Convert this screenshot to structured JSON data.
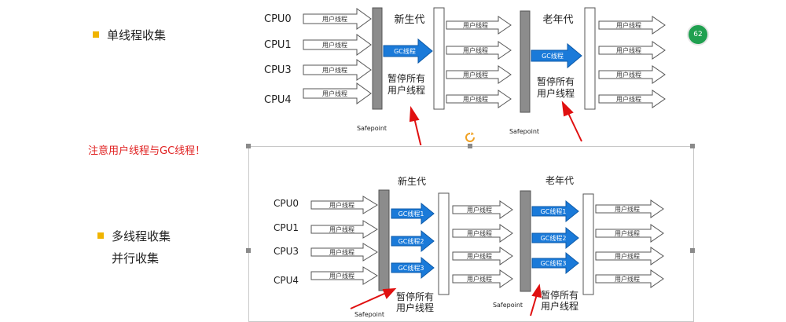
{
  "left_panel": {
    "single": "单线程收集",
    "note": "注意用户线程与GC线程！",
    "multi": "多线程收集",
    "parallel": "并行收集"
  },
  "colors": {
    "bullet": "#f0b400",
    "note": "#e02020",
    "gc_arrow": "#1a7ad9",
    "bar": "#8c8c8c",
    "red_arrow": "#e01010"
  },
  "top_diagram": {
    "cpus": [
      "CPU0",
      "CPU1",
      "CPU3",
      "CPU4"
    ],
    "user_thread": "用户线程",
    "young": "新生代",
    "old": "老年代",
    "gc": "GC线程",
    "pause_l1": "暂停所有",
    "pause_l2": "用户线程",
    "safepoint": "Safepoint"
  },
  "bottom_diagram": {
    "cpus": [
      "CPU0",
      "CPU1",
      "CPU3",
      "CPU4"
    ],
    "user_thread": "用户线程",
    "young": "新生代",
    "old": "老年代",
    "gc_threads": [
      "GC线程1",
      "GC线程2",
      "GC线程3"
    ],
    "pause_l1": "暂停所有",
    "pause_l2": "用户线程",
    "safepoint": "Safepoint"
  },
  "badge": {
    "text": "62"
  }
}
